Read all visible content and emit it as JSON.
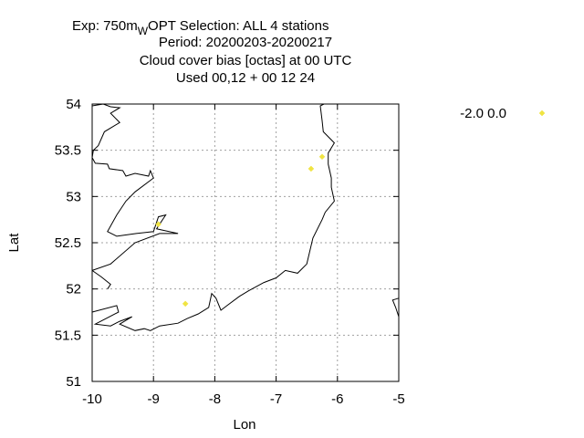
{
  "title_lines": [
    {
      "prefix": "Exp: 750m",
      "subscript": "W",
      "suffix": "OPT   Selection: ALL      4 stations"
    },
    "Period: 20200203-20200217",
    "Cloud cover bias [octas] at  00 UTC",
    "Used  00,12  + 00 12 24"
  ],
  "chart_data": {
    "type": "scatter",
    "xlabel": "Lon",
    "ylabel": "Lat",
    "xlim": [
      -10,
      -5
    ],
    "ylim": [
      51,
      54
    ],
    "x_ticks": [
      -10,
      -9,
      -8,
      -7,
      -6,
      -5
    ],
    "y_ticks": [
      51,
      51.5,
      52,
      52.5,
      53,
      53.5,
      54
    ],
    "x_tick_labels": [
      "-10",
      "-9",
      "-8",
      "-7",
      "-6",
      "-5"
    ],
    "y_tick_labels": [
      "51",
      "51.5",
      "52",
      "52.5",
      "53",
      "53.5",
      "54"
    ],
    "grid": true,
    "legend_position": "outside-right",
    "series": [
      {
        "name": "-2.0 0.0",
        "color": "#f0e442",
        "marker": "diamond",
        "points": [
          {
            "x": -6.25,
            "y": 53.43
          },
          {
            "x": -6.43,
            "y": 53.3
          },
          {
            "x": -8.92,
            "y": 52.7
          },
          {
            "x": -8.48,
            "y": 51.84
          }
        ]
      }
    ],
    "coastline": [
      [
        [
          -10,
          53.98
        ],
        [
          -9.82,
          54.0
        ],
        [
          -9.7,
          53.97
        ],
        [
          -9.55,
          53.96
        ],
        [
          -9.7,
          53.9
        ],
        [
          -9.55,
          53.8
        ],
        [
          -9.8,
          53.7
        ],
        [
          -9.9,
          53.55
        ],
        [
          -9.98,
          53.5
        ],
        [
          -10,
          53.42
        ]
      ],
      [
        [
          -10,
          53.42
        ],
        [
          -9.95,
          53.36
        ],
        [
          -9.75,
          53.35
        ],
        [
          -9.72,
          53.3
        ],
        [
          -9.5,
          53.28
        ],
        [
          -9.45,
          53.22
        ],
        [
          -9.3,
          53.25
        ],
        [
          -9.08,
          53.22
        ],
        [
          -9.05,
          53.28
        ],
        [
          -9.0,
          53.2
        ],
        [
          -9.3,
          53.05
        ],
        [
          -9.45,
          52.95
        ],
        [
          -9.6,
          52.8
        ],
        [
          -9.75,
          52.62
        ],
        [
          -9.6,
          52.57
        ],
        [
          -9.28,
          52.6
        ],
        [
          -9.0,
          52.62
        ],
        [
          -8.95,
          52.72
        ],
        [
          -8.92,
          52.78
        ],
        [
          -8.8,
          52.8
        ],
        [
          -8.9,
          52.7
        ],
        [
          -8.95,
          52.65
        ],
        [
          -8.6,
          52.6
        ],
        [
          -8.9,
          52.6
        ],
        [
          -9.3,
          52.5
        ],
        [
          -9.7,
          52.27
        ],
        [
          -10,
          52.2
        ]
      ],
      [
        [
          -10,
          52.2
        ],
        [
          -9.85,
          52.13
        ],
        [
          -9.7,
          52.05
        ],
        [
          -9.75,
          52.0
        ]
      ],
      [
        [
          -10,
          51.75
        ],
        [
          -9.6,
          51.82
        ],
        [
          -9.57,
          51.75
        ],
        [
          -9.95,
          51.62
        ],
        [
          -9.7,
          51.6
        ],
        [
          -9.55,
          51.65
        ],
        [
          -9.35,
          51.7
        ],
        [
          -9.55,
          51.62
        ],
        [
          -9.3,
          51.55
        ],
        [
          -9.15,
          51.57
        ],
        [
          -9.05,
          51.55
        ],
        [
          -8.9,
          51.6
        ],
        [
          -8.6,
          51.63
        ],
        [
          -8.45,
          51.68
        ],
        [
          -8.27,
          51.73
        ],
        [
          -8.1,
          51.8
        ],
        [
          -8.05,
          51.95
        ],
        [
          -7.98,
          51.9
        ],
        [
          -7.9,
          51.77
        ],
        [
          -7.8,
          51.82
        ],
        [
          -7.6,
          51.92
        ],
        [
          -7.45,
          51.98
        ],
        [
          -7.2,
          52.07
        ],
        [
          -7.0,
          52.12
        ],
        [
          -6.85,
          52.2
        ],
        [
          -6.65,
          52.17
        ],
        [
          -6.5,
          52.27
        ],
        [
          -6.4,
          52.55
        ],
        [
          -6.25,
          52.75
        ],
        [
          -6.2,
          52.83
        ],
        [
          -6.05,
          52.95
        ],
        [
          -6.1,
          53.1
        ],
        [
          -6.1,
          53.2
        ],
        [
          -6.15,
          53.35
        ],
        [
          -6.15,
          53.47
        ],
        [
          -6.05,
          53.58
        ],
        [
          -6.23,
          53.7
        ],
        [
          -6.25,
          53.82
        ],
        [
          -6.28,
          53.98
        ],
        [
          -6.22,
          54.0
        ]
      ],
      [
        [
          -5,
          51.9
        ],
        [
          -5.1,
          51.88
        ],
        [
          -5.05,
          51.8
        ],
        [
          -5.0,
          51.7
        ]
      ]
    ]
  }
}
